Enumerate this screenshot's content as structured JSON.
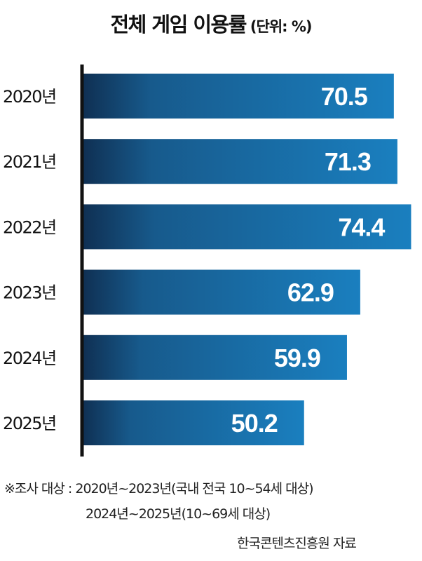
{
  "header": {
    "title": "전체 게임 이용률",
    "unit": "(단위: %)"
  },
  "chart_data": {
    "type": "bar",
    "orientation": "horizontal",
    "categories": [
      "2020년",
      "2021년",
      "2022년",
      "2023년",
      "2024년",
      "2025년"
    ],
    "values": [
      70.5,
      71.3,
      74.4,
      62.9,
      59.9,
      50.2
    ],
    "value_labels": [
      "70.5",
      "71.3",
      "74.4",
      "62.9",
      "59.9",
      "50.2"
    ],
    "bar_color_start": "#0f2f52",
    "bar_color_end": "#1a7fbf",
    "axis_color": "#111111",
    "grid": false
  },
  "notes": {
    "line1": "※조사 대상 : 2020년~2023년(국내 전국 10~54세 대상)",
    "line2": "2024년~2025년(10~69세 대상)"
  },
  "source": "한국콘텐츠진흥원 자료"
}
